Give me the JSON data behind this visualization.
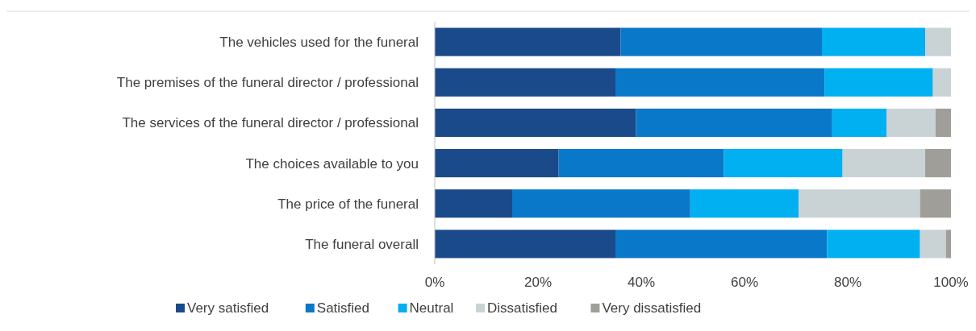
{
  "chart_data": {
    "type": "bar",
    "orientation": "horizontal",
    "stacked": true,
    "categories": [
      "The vehicles used for the funeral",
      "The premises of the funeral director / professional",
      "The services of the funeral director / professional",
      "The choices available to you",
      "The price of the funeral",
      "The funeral overall"
    ],
    "series": [
      {
        "name": "Very satisfied",
        "color": "#1b4a8a",
        "values": [
          36,
          35,
          39,
          24,
          15,
          35
        ]
      },
      {
        "name": "Satisfied",
        "color": "#0a78c8",
        "values": [
          39,
          40.5,
          38,
          32,
          34.5,
          41
        ]
      },
      {
        "name": "Neutral",
        "color": "#00b0f0",
        "values": [
          20,
          21,
          10.5,
          23,
          21,
          18
        ]
      },
      {
        "name": "Dissatisfied",
        "color": "#c9d3d6",
        "values": [
          5,
          3.5,
          9.5,
          16,
          23.5,
          5
        ]
      },
      {
        "name": "Very dissatisfied",
        "color": "#a09e99",
        "values": [
          0,
          0,
          3,
          5,
          6,
          1
        ]
      }
    ],
    "xlim": [
      0,
      100
    ],
    "xticks": [
      {
        "value": 0,
        "label": "0%"
      },
      {
        "value": 20,
        "label": "20%"
      },
      {
        "value": 40,
        "label": "40%"
      },
      {
        "value": 60,
        "label": "60%"
      },
      {
        "value": 80,
        "label": "80%"
      },
      {
        "value": 100,
        "label": "100%"
      }
    ],
    "grid": false,
    "legend": "bottom"
  }
}
